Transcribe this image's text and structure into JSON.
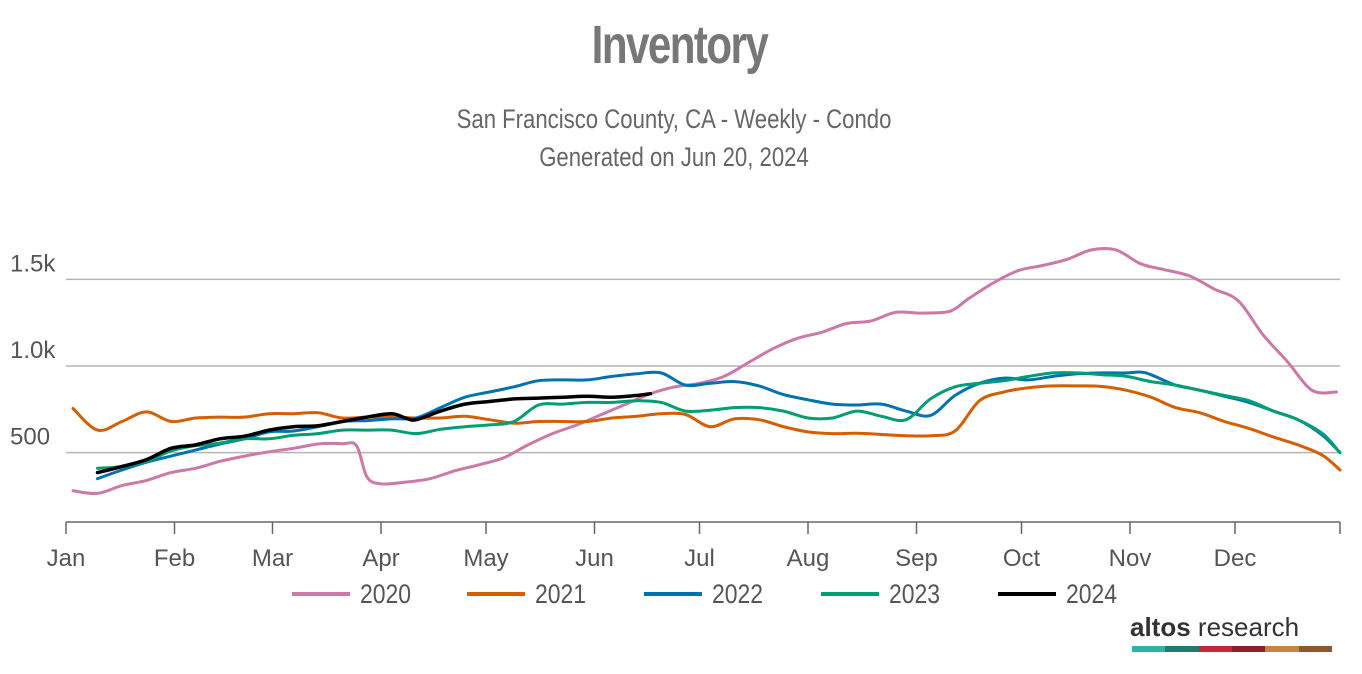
{
  "title": "Inventory",
  "subtitle": "San Francisco County, CA - Weekly - Condo",
  "generated": "Generated on Jun 20, 2024",
  "brand": {
    "name_bold": "altos",
    "name_regular": " research",
    "bar_colors": [
      "#2bb5a6",
      "#1e7d6e",
      "#c2273d",
      "#8c1f2b",
      "#c8843c",
      "#8a5a2b"
    ]
  },
  "chart_data": {
    "type": "line",
    "title": "Inventory",
    "subtitle": "San Francisco County, CA - Weekly - Condo",
    "xlabel": "",
    "ylabel": "",
    "x_unit": "day of year",
    "xlim": [
      1,
      365
    ],
    "ylim": [
      100,
      1900
    ],
    "y_ticks": [
      500,
      1000,
      1500
    ],
    "y_tick_labels": [
      "500",
      "1.0k",
      "1.5k"
    ],
    "month_starts": [
      1,
      32,
      60,
      91,
      121,
      152,
      182,
      213,
      244,
      274,
      305,
      335
    ],
    "month_labels": [
      "Jan",
      "Feb",
      "Mar",
      "Apr",
      "May",
      "Jun",
      "Jul",
      "Aug",
      "Sep",
      "Oct",
      "Nov",
      "Dec"
    ],
    "grid": true,
    "legend_position": "bottom",
    "series": [
      {
        "name": "2020",
        "color": "#cc79a7",
        "x": [
          3,
          10,
          17,
          24,
          31,
          38,
          45,
          52,
          59,
          66,
          73,
          80,
          84,
          87,
          91,
          98,
          105,
          112,
          119,
          126,
          133,
          140,
          147,
          154,
          161,
          168,
          175,
          182,
          189,
          196,
          203,
          210,
          217,
          224,
          231,
          238,
          245,
          252,
          255,
          259,
          266,
          273,
          280,
          287,
          294,
          301,
          308,
          315,
          322,
          329,
          336,
          343,
          350,
          357,
          364
        ],
        "y": [
          280,
          265,
          310,
          340,
          385,
          410,
          450,
          480,
          505,
          525,
          550,
          552,
          540,
          360,
          320,
          330,
          350,
          395,
          430,
          470,
          545,
          610,
          660,
          720,
          780,
          840,
          880,
          900,
          940,
          1020,
          1100,
          1160,
          1195,
          1245,
          1260,
          1310,
          1305,
          1310,
          1330,
          1390,
          1480,
          1550,
          1580,
          1615,
          1670,
          1670,
          1590,
          1555,
          1520,
          1445,
          1375,
          1180,
          1025,
          860,
          850
        ]
      },
      {
        "name": "2021",
        "color": "#d55e00",
        "x": [
          3,
          10,
          17,
          24,
          31,
          38,
          45,
          52,
          59,
          66,
          73,
          80,
          87,
          94,
          101,
          108,
          115,
          122,
          129,
          136,
          143,
          150,
          157,
          164,
          171,
          178,
          185,
          192,
          199,
          206,
          213,
          220,
          227,
          234,
          241,
          248,
          255,
          262,
          269,
          276,
          283,
          290,
          297,
          304,
          311,
          318,
          325,
          332,
          339,
          346,
          353,
          360,
          365
        ],
        "y": [
          755,
          630,
          680,
          735,
          680,
          700,
          705,
          705,
          725,
          725,
          730,
          700,
          705,
          705,
          700,
          700,
          710,
          690,
          670,
          680,
          680,
          680,
          700,
          710,
          725,
          720,
          650,
          695,
          690,
          650,
          620,
          610,
          612,
          605,
          598,
          598,
          625,
          800,
          850,
          875,
          885,
          885,
          882,
          860,
          820,
          760,
          730,
          680,
          640,
          590,
          545,
          485,
          400
        ]
      },
      {
        "name": "2022",
        "color": "#0072b2",
        "x": [
          10,
          17,
          24,
          31,
          38,
          45,
          52,
          59,
          66,
          73,
          80,
          87,
          94,
          101,
          108,
          115,
          122,
          129,
          136,
          143,
          150,
          157,
          164,
          171,
          178,
          185,
          192,
          199,
          206,
          213,
          220,
          227,
          234,
          241,
          248,
          255,
          262,
          269,
          276,
          283,
          290,
          297,
          304,
          308,
          311,
          318,
          325,
          332,
          339,
          346,
          353,
          360,
          365
        ],
        "y": [
          350,
          400,
          445,
          480,
          515,
          550,
          580,
          620,
          625,
          650,
          680,
          685,
          695,
          700,
          760,
          820,
          850,
          880,
          915,
          920,
          920,
          940,
          955,
          960,
          890,
          900,
          910,
          885,
          835,
          805,
          780,
          775,
          780,
          740,
          715,
          830,
          900,
          930,
          920,
          940,
          955,
          960,
          960,
          965,
          950,
          890,
          860,
          825,
          790,
          740,
          690,
          600,
          500
        ]
      },
      {
        "name": "2023",
        "color": "#009e73",
        "x": [
          10,
          17,
          24,
          31,
          38,
          45,
          52,
          59,
          66,
          73,
          80,
          87,
          94,
          101,
          108,
          115,
          122,
          129,
          136,
          143,
          150,
          157,
          164,
          171,
          178,
          185,
          192,
          199,
          206,
          213,
          220,
          227,
          234,
          241,
          248,
          255,
          262,
          269,
          276,
          283,
          290,
          297,
          304,
          311,
          318,
          325,
          332,
          339,
          346,
          353,
          360,
          365
        ],
        "y": [
          410,
          420,
          450,
          510,
          540,
          555,
          580,
          580,
          600,
          610,
          630,
          630,
          630,
          610,
          635,
          650,
          660,
          680,
          775,
          780,
          790,
          790,
          800,
          790,
          740,
          745,
          760,
          760,
          740,
          700,
          700,
          740,
          710,
          690,
          810,
          880,
          900,
          915,
          940,
          960,
          960,
          950,
          940,
          910,
          890,
          860,
          830,
          800,
          740,
          690,
          610,
          500
        ]
      },
      {
        "name": "2024",
        "color": "#000000",
        "x": [
          10,
          17,
          24,
          31,
          38,
          45,
          52,
          59,
          66,
          73,
          80,
          87,
          94,
          98,
          101,
          108,
          115,
          122,
          129,
          136,
          143,
          150,
          157,
          164,
          168
        ],
        "y": [
          385,
          420,
          460,
          525,
          545,
          580,
          595,
          630,
          650,
          655,
          680,
          705,
          725,
          700,
          690,
          740,
          780,
          795,
          810,
          815,
          820,
          825,
          820,
          830,
          840
        ]
      }
    ]
  }
}
